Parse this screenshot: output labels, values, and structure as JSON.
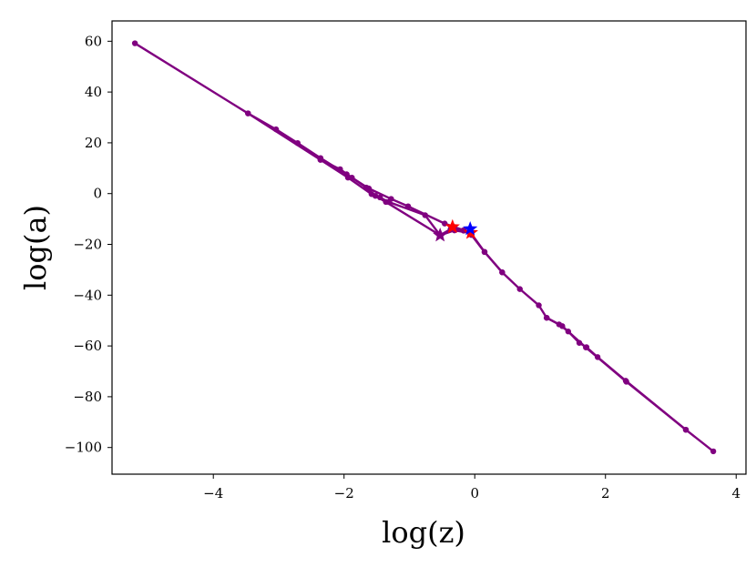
{
  "chart_data": {
    "type": "line",
    "title": "",
    "xlabel": "log(z)",
    "ylabel": "log(a)",
    "xlim": [
      -5.55,
      4.15
    ],
    "ylim": [
      -110.5,
      68.0
    ],
    "xticks": [
      -4,
      -2,
      0,
      2,
      4
    ],
    "yticks": [
      60,
      40,
      20,
      0,
      -20,
      -40,
      -60,
      -80,
      -100
    ],
    "xtick_labels": [
      "−4",
      "−2",
      "0",
      "2",
      "4"
    ],
    "ytick_labels": [
      "60",
      "40",
      "20",
      "0",
      "−20",
      "−40",
      "−60",
      "−80",
      "−100"
    ],
    "grid": false,
    "colors": {
      "line": "#800080",
      "star_red": "#ff0000",
      "star_blue": "#0000ff",
      "axis": "#000000"
    },
    "series": [
      {
        "points": [
          [
            -5.2,
            59.2
          ],
          [
            -3.47,
            31.6
          ],
          [
            -3.04,
            25.3
          ],
          [
            -2.71,
            19.9
          ],
          [
            -2.36,
            14.0
          ],
          [
            -1.96,
            7.6
          ],
          [
            -1.62,
            2.0
          ],
          [
            -1.28,
            -2.1
          ],
          [
            -1.02,
            -5.0
          ],
          [
            -0.46,
            -11.8
          ],
          [
            -0.33,
            -13.0
          ],
          [
            -0.17,
            -14.4
          ],
          [
            -0.08,
            -15.2
          ],
          [
            0.15,
            -23.0
          ],
          [
            0.42,
            -31.0
          ],
          [
            0.69,
            -37.6
          ],
          [
            0.98,
            -44.0
          ],
          [
            1.1,
            -48.9
          ],
          [
            1.29,
            -51.5
          ],
          [
            1.43,
            -54.3
          ],
          [
            1.6,
            -58.8
          ],
          [
            1.71,
            -60.5
          ],
          [
            1.88,
            -64.4
          ],
          [
            2.31,
            -73.7
          ],
          [
            3.23,
            -93.0
          ],
          [
            3.65,
            -101.5
          ]
        ]
      },
      {
        "points": [
          [
            -3.47,
            31.6
          ],
          [
            -2.36,
            13.3
          ],
          [
            -2.06,
            9.6
          ],
          [
            -1.88,
            6.3
          ],
          [
            -1.66,
            2.4
          ],
          [
            -1.52,
            -0.9
          ],
          [
            -1.36,
            -3.3
          ],
          [
            -0.53,
            -16.4
          ],
          [
            -0.37,
            -14.0
          ],
          [
            -0.17,
            -14.6
          ],
          [
            -0.05,
            -16.3
          ],
          [
            0.15,
            -23.0
          ]
        ]
      },
      {
        "points": [
          [
            -2.36,
            13.3
          ],
          [
            -1.94,
            6.3
          ],
          [
            -1.58,
            -0.2
          ],
          [
            -1.45,
            -1.5
          ],
          [
            -1.32,
            -3.3
          ],
          [
            -0.76,
            -8.5
          ],
          [
            -0.53,
            -16.4
          ],
          [
            -0.31,
            -14.5
          ],
          [
            -0.06,
            -15.5
          ],
          [
            0.15,
            -23.0
          ],
          [
            0.42,
            -31.0
          ]
        ]
      },
      {
        "points": [
          [
            1.1,
            -48.9
          ],
          [
            1.34,
            -52.2
          ],
          [
            1.7,
            -60.6
          ],
          [
            2.32,
            -74.1
          ],
          [
            3.23,
            -93.0
          ]
        ]
      }
    ],
    "stars": [
      {
        "x": -0.53,
        "y": -16.4,
        "color": "purple"
      },
      {
        "x": -0.34,
        "y": -13.1,
        "color": "red"
      },
      {
        "x": -0.06,
        "y": -15.4,
        "color": "red"
      },
      {
        "x": -0.07,
        "y": -13.9,
        "color": "blue"
      }
    ]
  }
}
